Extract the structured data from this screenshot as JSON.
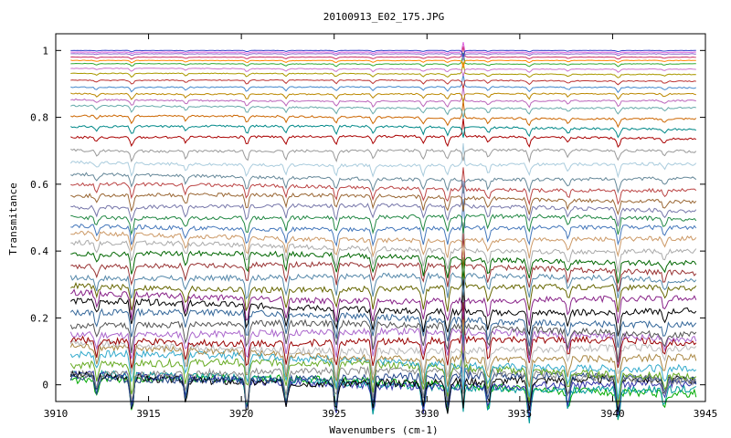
{
  "chart_data": {
    "type": "line",
    "title": "20100913_E02_175.JPG",
    "xlabel": "Wavenumbers (cm-1)",
    "ylabel": "Transmitance",
    "xlim": [
      3910,
      3945
    ],
    "ylim": [
      -0.05,
      1.05
    ],
    "x_ticks": [
      3910,
      3915,
      3920,
      3925,
      3930,
      3935,
      3940,
      3945
    ],
    "y_ticks": [
      0,
      0.2,
      0.4,
      0.6,
      0.8,
      1
    ],
    "x_tick_labels": [
      "3910",
      "3915",
      "3920",
      "3925",
      "3930",
      "3935",
      "3940",
      "3945"
    ],
    "y_tick_labels": [
      "0",
      "0.2",
      "0.4",
      "0.6",
      "0.8",
      "1"
    ],
    "x_data_range": [
      3910.8,
      3944.5
    ],
    "grid": false,
    "legend": "none",
    "absorption_lines": [
      3912.2,
      3914.1,
      3917.0,
      3920.3,
      3922.4,
      3925.1,
      3927.1,
      3929.8,
      3931.1,
      3933.3,
      3935.5,
      3937.6,
      3940.3,
      3942.8
    ],
    "spike_at": 3931.95,
    "series_baselines": [
      0.0,
      0.005,
      0.01,
      0.015,
      0.02,
      0.03,
      0.05,
      0.07,
      0.09,
      0.11,
      0.13,
      0.15,
      0.17,
      0.2,
      0.23,
      0.26,
      0.29,
      0.32,
      0.35,
      0.38,
      0.41,
      0.44,
      0.47,
      0.5,
      0.53,
      0.56,
      0.59,
      0.62,
      0.66,
      0.7,
      0.74,
      0.77,
      0.8,
      0.83,
      0.85,
      0.87,
      0.89,
      0.91,
      0.93,
      0.945,
      0.96,
      0.97,
      0.98,
      0.99,
      0.995,
      1.0
    ],
    "series_colors": [
      "#00aa00",
      "#009999",
      "#3333aa",
      "#000000",
      "#224488",
      "#888888",
      "#66aa22",
      "#33aacc",
      "#aa8844",
      "#bbbbbb",
      "#990000",
      "#aa66cc",
      "#555555",
      "#336699",
      "#000000",
      "#882288",
      "#666600",
      "#5588aa",
      "#993333",
      "#006600",
      "#aaaaaa",
      "#cc9966",
      "#4477bb",
      "#228844",
      "#7777aa",
      "#996633",
      "#bb4444",
      "#668899",
      "#aaccdd",
      "#999999",
      "#aa0000",
      "#008888",
      "#cc6600",
      "#66aaaa",
      "#bb66bb",
      "#bb8800",
      "#4488cc",
      "#bb3333",
      "#aa9900",
      "#cc77cc",
      "#33aa33",
      "#ff8800",
      "#cc3366",
      "#8866cc",
      "#dd66dd",
      "#3344cc"
    ]
  }
}
